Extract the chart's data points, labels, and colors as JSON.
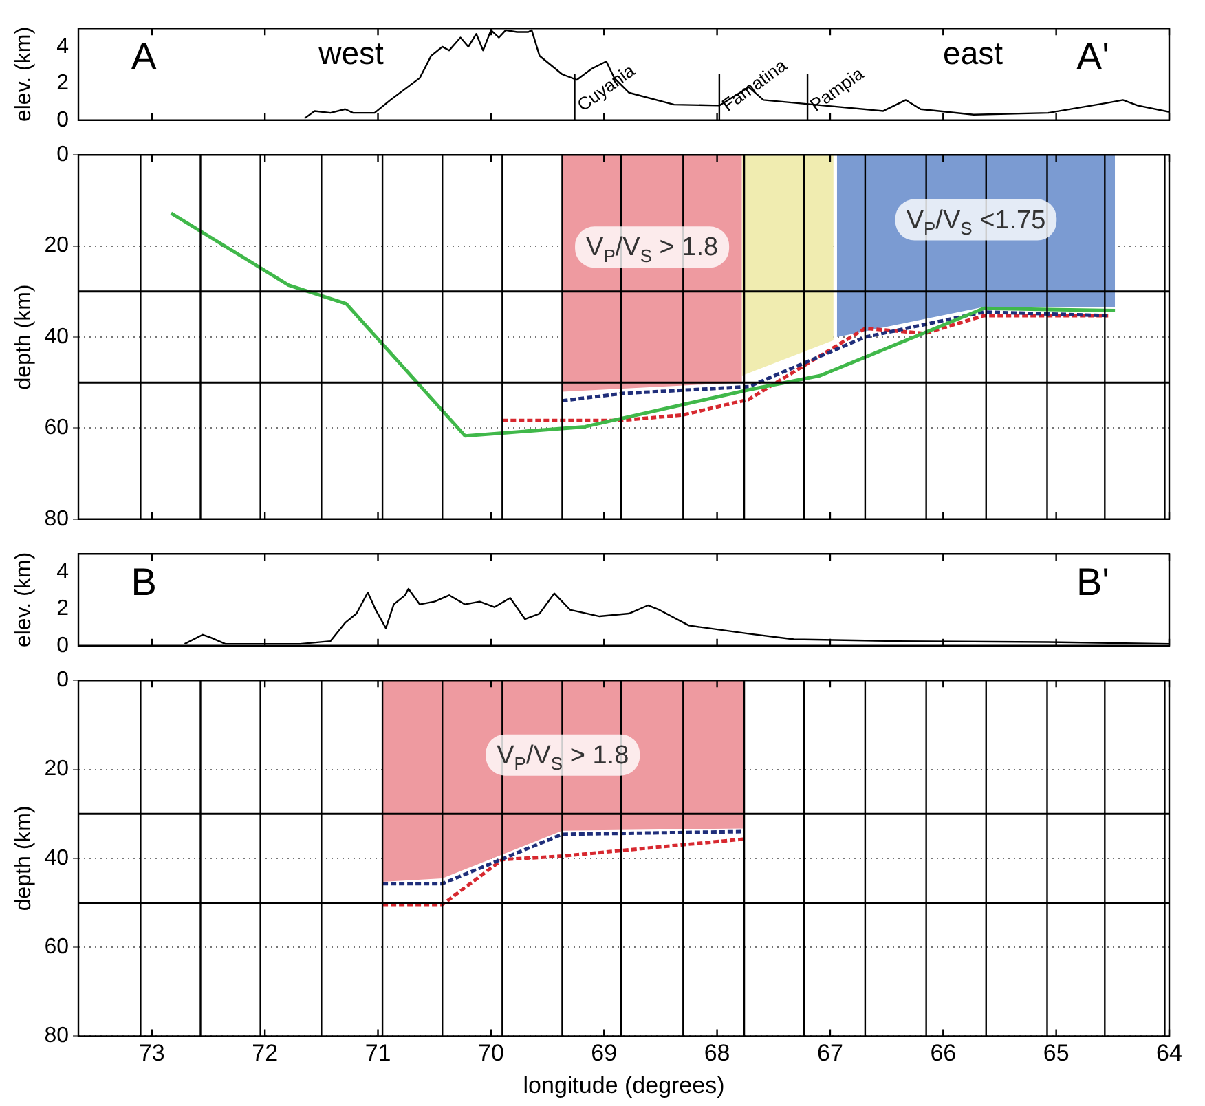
{
  "chart_data": [
    {
      "type": "line",
      "ylabel": "elev. (km)",
      "xlim": [
        73.65,
        64
      ],
      "xticks": [
        73,
        72,
        71,
        70,
        69,
        68,
        67,
        66,
        65,
        64
      ],
      "ylim": [
        0,
        5
      ],
      "yticks": [
        0,
        2,
        4
      ],
      "tick_labels": "y",
      "marker": "none",
      "annotations": [
        "A",
        "west",
        "east",
        "A'"
      ],
      "ref_lines": [
        {
          "axis": "x",
          "value": 69.26,
          "label": "Cuyania"
        },
        {
          "axis": "x",
          "value": 67.98,
          "label": "Famatina"
        },
        {
          "axis": "x",
          "value": 67.2,
          "label": "Pampia"
        }
      ],
      "series": [
        {
          "color": "#000000",
          "x": [
            71.65,
            71.56,
            71.42,
            71.29,
            71.22,
            71.03,
            70.89,
            70.63,
            70.53,
            70.43,
            70.37,
            70.27,
            70.2,
            70.13,
            70.07,
            70.0,
            69.93,
            69.87,
            69.77,
            69.67,
            69.64,
            69.57,
            69.37,
            69.24,
            69.11,
            68.98,
            68.91,
            68.78,
            68.38,
            67.98,
            67.72,
            67.59,
            67.06,
            66.53,
            66.33,
            66.2,
            65.73,
            65.07,
            64.54,
            64.41,
            64.28,
            64.0
          ],
          "values": [
            0.1,
            0.5,
            0.4,
            0.6,
            0.4,
            0.4,
            1.1,
            2.3,
            3.5,
            4.0,
            3.8,
            4.5,
            4.0,
            4.7,
            3.8,
            4.9,
            4.5,
            4.9,
            4.8,
            4.8,
            4.9,
            3.5,
            2.5,
            2.2,
            2.8,
            3.2,
            2.3,
            1.5,
            0.85,
            0.8,
            1.8,
            1.1,
            0.8,
            0.5,
            1.1,
            0.6,
            0.3,
            0.4,
            0.95,
            1.1,
            0.8,
            0.45
          ]
        }
      ]
    },
    {
      "type": "line",
      "ylabel": "depth (km)",
      "xlim": [
        73.65,
        64
      ],
      "xticks": [
        73,
        72,
        71,
        70,
        69,
        68,
        67,
        66,
        65,
        64
      ],
      "ylim": [
        80,
        0
      ],
      "yticks": [
        0,
        20,
        40,
        60,
        80
      ],
      "grid": "y",
      "tick_labels": "y",
      "marker": "none",
      "ref_lines": [
        {
          "axis": "x",
          "value": 73.1
        },
        {
          "axis": "x",
          "value": 72.57
        },
        {
          "axis": "x",
          "value": 72.04
        },
        {
          "axis": "x",
          "value": 71.5
        },
        {
          "axis": "x",
          "value": 70.96
        },
        {
          "axis": "x",
          "value": 70.43
        },
        {
          "axis": "x",
          "value": 69.9
        },
        {
          "axis": "x",
          "value": 69.37
        },
        {
          "axis": "x",
          "value": 68.85
        },
        {
          "axis": "x",
          "value": 68.3
        },
        {
          "axis": "x",
          "value": 67.76
        },
        {
          "axis": "x",
          "value": 67.23
        },
        {
          "axis": "x",
          "value": 66.69
        },
        {
          "axis": "x",
          "value": 66.15
        },
        {
          "axis": "x",
          "value": 65.62
        },
        {
          "axis": "x",
          "value": 65.08
        },
        {
          "axis": "x",
          "value": 64.57
        },
        {
          "axis": "x",
          "value": 64.04
        },
        {
          "axis": "y",
          "value": 30
        },
        {
          "axis": "y",
          "value": 50
        }
      ],
      "series": [
        {
          "type": "area",
          "name": "V$_{P}$/V$_{S}$ > 1.8",
          "color": "#ee9aa0",
          "x": [
            69.37,
            67.78
          ],
          "values": [
            52,
            50
          ]
        },
        {
          "type": "area",
          "color": "#f0ecb0",
          "x": [
            67.78,
            66.97
          ],
          "values": [
            48.5,
            40.7
          ]
        },
        {
          "type": "area",
          "name": "V$_{P}$/V$_{S}$ <1.75",
          "color": "#7b9bd2",
          "x": [
            66.94,
            65.64,
            64.48
          ],
          "values": [
            40,
            33.4,
            33.4
          ]
        },
        {
          "type": "line",
          "color": "#40b84a",
          "x": [
            72.83,
            71.79,
            71.28,
            70.23,
            69.17,
            67.72,
            67.09,
            65.64,
            64.48
          ],
          "values": [
            12.8,
            28.6,
            32.7,
            61.7,
            59.7,
            51.6,
            48.5,
            33.7,
            34.2
          ]
        },
        {
          "type": "line",
          "line_style": "dashed",
          "color": "#1f2e7a",
          "x": [
            69.37,
            68.84,
            67.72,
            66.69,
            65.64,
            64.54
          ],
          "values": [
            54,
            52.4,
            50.9,
            40,
            34.5,
            35.3
          ]
        },
        {
          "type": "line",
          "line_style": "dashed",
          "color": "#d7282f",
          "x": [
            69.9,
            68.84,
            68.3,
            67.72,
            66.69,
            66.16,
            65.64,
            64.54
          ],
          "values": [
            58.3,
            58.3,
            57.1,
            53.7,
            38.1,
            39.2,
            35.3,
            35.3
          ]
        }
      ]
    },
    {
      "type": "line",
      "ylabel": "elev. (km)",
      "xlim": [
        73.65,
        64
      ],
      "xticks": [
        73,
        72,
        71,
        70,
        69,
        68,
        67,
        66,
        65,
        64
      ],
      "ylim": [
        0,
        5
      ],
      "yticks": [
        0,
        2,
        4
      ],
      "tick_labels": "y",
      "marker": "none",
      "annotations": [
        "B",
        "B'"
      ],
      "series": [
        {
          "color": "#000000",
          "x": [
            72.71,
            72.55,
            72.48,
            72.35,
            71.69,
            71.42,
            71.29,
            71.19,
            71.09,
            71.02,
            70.93,
            70.86,
            70.76,
            70.73,
            70.63,
            70.5,
            70.37,
            70.23,
            70.1,
            69.97,
            69.83,
            69.7,
            69.57,
            69.44,
            69.3,
            69.04,
            68.78,
            68.61,
            68.51,
            68.25,
            67.72,
            67.32,
            66.4,
            65.07,
            64.0
          ],
          "values": [
            0.1,
            0.6,
            0.45,
            0.1,
            0.1,
            0.25,
            1.25,
            1.75,
            2.9,
            1.95,
            0.95,
            2.25,
            2.75,
            3.1,
            2.25,
            2.4,
            2.75,
            2.25,
            2.4,
            2.1,
            2.6,
            1.45,
            1.75,
            2.85,
            1.95,
            1.6,
            1.75,
            2.2,
            1.95,
            1.1,
            0.65,
            0.35,
            0.25,
            0.2,
            0.1
          ]
        }
      ]
    },
    {
      "type": "line",
      "ylabel": "depth (km)",
      "xlabel": "longitude (degrees)",
      "xlim": [
        73.65,
        64
      ],
      "xticks": [
        73,
        72,
        71,
        70,
        69,
        68,
        67,
        66,
        65,
        64
      ],
      "ylim": [
        80,
        0
      ],
      "yticks": [
        0,
        20,
        40,
        60,
        80
      ],
      "grid": "y",
      "marker": "none",
      "ref_lines": [
        {
          "axis": "x",
          "value": 73.1
        },
        {
          "axis": "x",
          "value": 72.57
        },
        {
          "axis": "x",
          "value": 72.04
        },
        {
          "axis": "x",
          "value": 71.5
        },
        {
          "axis": "x",
          "value": 70.96
        },
        {
          "axis": "x",
          "value": 70.43
        },
        {
          "axis": "x",
          "value": 69.9
        },
        {
          "axis": "x",
          "value": 69.37
        },
        {
          "axis": "x",
          "value": 68.85
        },
        {
          "axis": "x",
          "value": 68.3
        },
        {
          "axis": "x",
          "value": 67.76
        },
        {
          "axis": "x",
          "value": 67.23
        },
        {
          "axis": "x",
          "value": 66.69
        },
        {
          "axis": "x",
          "value": 66.15
        },
        {
          "axis": "x",
          "value": 65.62
        },
        {
          "axis": "x",
          "value": 65.08
        },
        {
          "axis": "x",
          "value": 64.57
        },
        {
          "axis": "x",
          "value": 64.04
        },
        {
          "axis": "y",
          "value": 30
        },
        {
          "axis": "y",
          "value": 50
        }
      ],
      "series": [
        {
          "type": "area",
          "name": "V$_{P}$/V$_{S}$ > 1.8",
          "color": "#ee9aa0",
          "x": [
            70.96,
            70.43,
            69.37,
            67.77
          ],
          "values": [
            45.3,
            44.5,
            33.8,
            33.3
          ]
        },
        {
          "type": "line",
          "line_style": "dashed",
          "color": "#1f2e7a",
          "x": [
            70.96,
            70.43,
            69.37,
            67.77
          ],
          "values": [
            45.7,
            45.7,
            34.6,
            34
          ]
        },
        {
          "type": "line",
          "line_style": "dashed",
          "color": "#d7282f",
          "x": [
            70.96,
            70.43,
            69.9,
            69.37,
            67.77
          ],
          "values": [
            50.4,
            50.4,
            40.3,
            39.5,
            35.7
          ]
        }
      ]
    }
  ]
}
